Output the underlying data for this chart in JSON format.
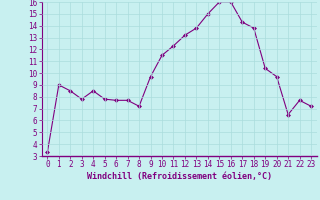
{
  "x": [
    0,
    1,
    2,
    3,
    4,
    5,
    6,
    7,
    8,
    9,
    10,
    11,
    12,
    13,
    14,
    15,
    16,
    17,
    18,
    19,
    20,
    21,
    22,
    23
  ],
  "y": [
    3.3,
    9.0,
    8.5,
    7.8,
    8.5,
    7.8,
    7.7,
    7.7,
    7.2,
    9.7,
    11.5,
    12.3,
    13.2,
    13.8,
    15.0,
    16.0,
    16.0,
    14.3,
    13.8,
    10.4,
    9.7,
    6.5,
    7.7,
    7.2
  ],
  "line_color": "#800080",
  "marker": "D",
  "marker_size": 2.0,
  "bg_color": "#c8f0f0",
  "grid_color": "#aadddd",
  "xlabel": "Windchill (Refroidissement éolien,°C)",
  "xlabel_color": "#800080",
  "tick_color": "#800080",
  "spine_color": "#800080",
  "ylim": [
    3,
    16
  ],
  "xlim": [
    -0.5,
    23.5
  ],
  "yticks": [
    3,
    4,
    5,
    6,
    7,
    8,
    9,
    10,
    11,
    12,
    13,
    14,
    15,
    16
  ],
  "xticks": [
    0,
    1,
    2,
    3,
    4,
    5,
    6,
    7,
    8,
    9,
    10,
    11,
    12,
    13,
    14,
    15,
    16,
    17,
    18,
    19,
    20,
    21,
    22,
    23
  ],
  "tick_fontsize": 5.5,
  "xlabel_fontsize": 6.0
}
